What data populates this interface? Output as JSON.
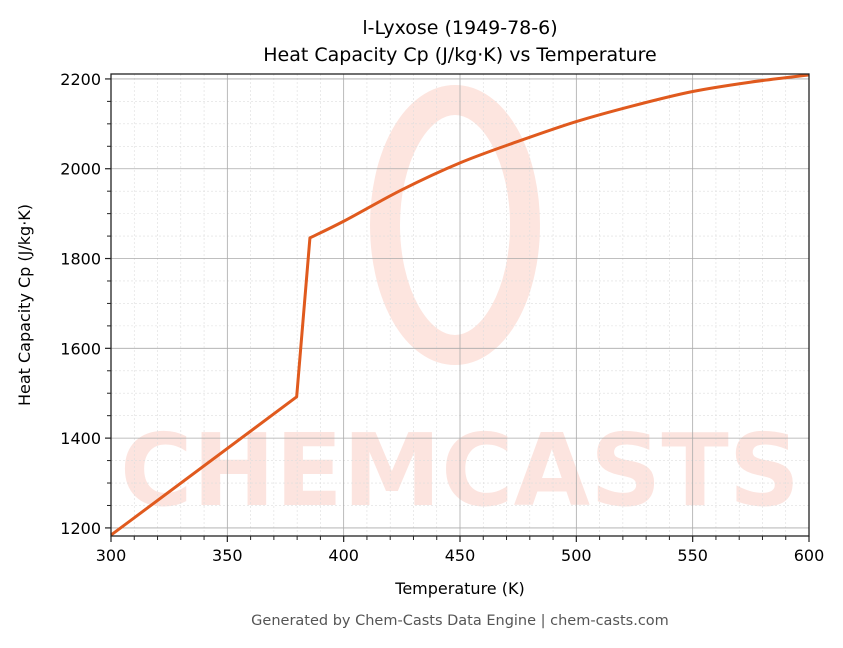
{
  "chart_data": {
    "type": "line",
    "title": "l-Lyxose (1949-78-6)",
    "subtitle": "Heat Capacity Cp (J/kg·K) vs Temperature",
    "xlabel": "Temperature (K)",
    "ylabel": "Heat Capacity Cp (J/kg·K)",
    "xlim": [
      300,
      600
    ],
    "ylim": [
      1182,
      2211
    ],
    "xticks": [
      300,
      350,
      400,
      450,
      500,
      550,
      600
    ],
    "yticks": [
      1200,
      1400,
      1600,
      1800,
      2000,
      2200
    ],
    "grid": true,
    "legend": "none",
    "series": [
      {
        "color": "#e05a1e",
        "x": [
          300,
          379.8,
          385.5,
          400,
          425,
          450,
          475,
          500,
          525,
          550,
          575,
          600
        ],
        "y": [
          1184,
          1492,
          1846,
          1883,
          1953,
          2013,
          2061,
          2105,
          2141,
          2172,
          2193,
          2209
        ]
      }
    ]
  },
  "footer": "Generated by Chem-Casts Data Engine | chem-casts.com",
  "watermark": "CHEMCASTS"
}
